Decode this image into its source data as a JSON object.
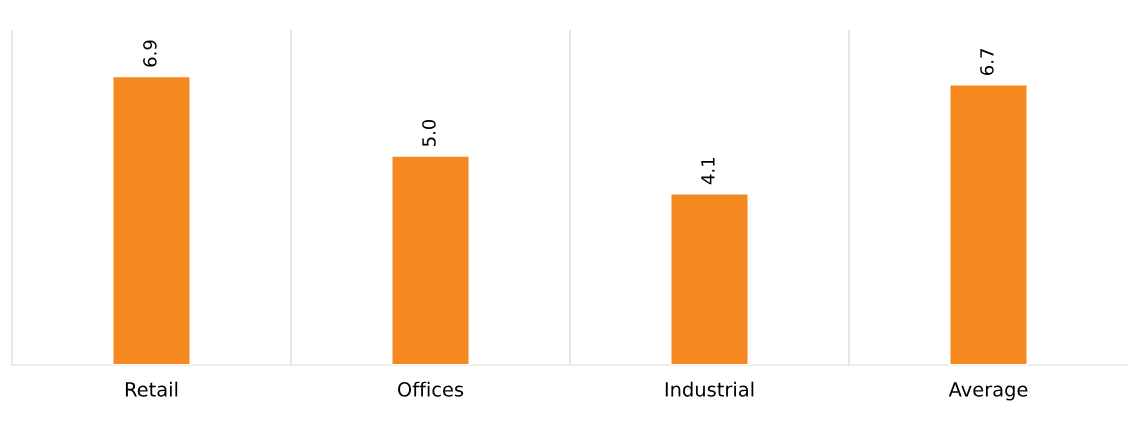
{
  "chart_data": {
    "type": "bar",
    "categories": [
      "Retail",
      "Offices",
      "Industrial",
      "Average"
    ],
    "values": [
      6.9,
      5.0,
      4.1,
      6.7
    ],
    "value_labels": [
      "6.9",
      "5.0",
      "4.1",
      "6.7"
    ],
    "color": "#f5881f",
    "relative": false,
    "grid": "x",
    "legend": false
  }
}
